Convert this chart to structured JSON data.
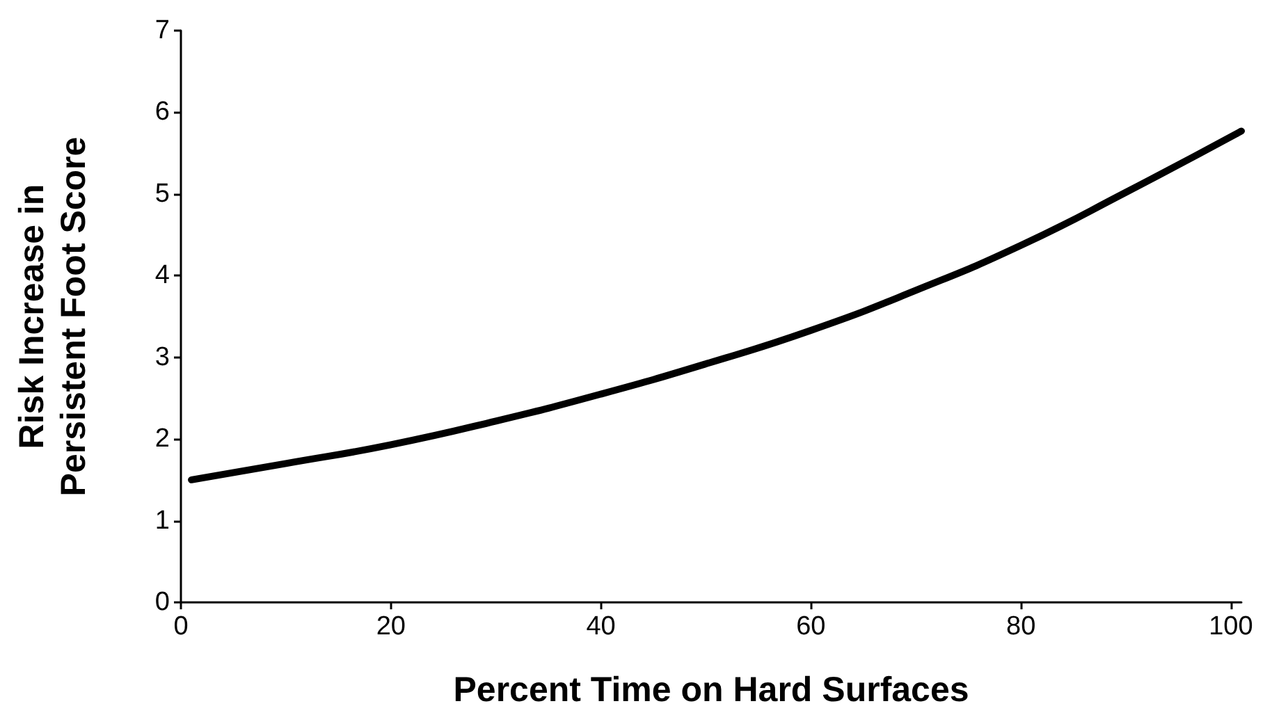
{
  "chart_data": {
    "type": "line",
    "xlabel": "Percent Time on Hard Surfaces",
    "ylabel": "Risk Increase in\nPersistent Foot Score",
    "x": [
      1,
      10,
      20,
      30,
      40,
      50,
      60,
      70,
      80,
      90,
      101
    ],
    "series": [
      {
        "color": "#000000",
        "values": [
          1.5,
          1.7,
          1.93,
          2.22,
          2.55,
          2.92,
          3.33,
          3.82,
          4.37,
          5.02,
          5.77
        ]
      }
    ],
    "xlim": [
      0,
      101
    ],
    "xticks": [
      0,
      20,
      40,
      60,
      80,
      100
    ],
    "ylim": [
      0,
      7
    ],
    "yticks": [
      0,
      1,
      2,
      3,
      4,
      5,
      6,
      7
    ],
    "grid": false,
    "marker": "none",
    "line_style": "solid"
  }
}
